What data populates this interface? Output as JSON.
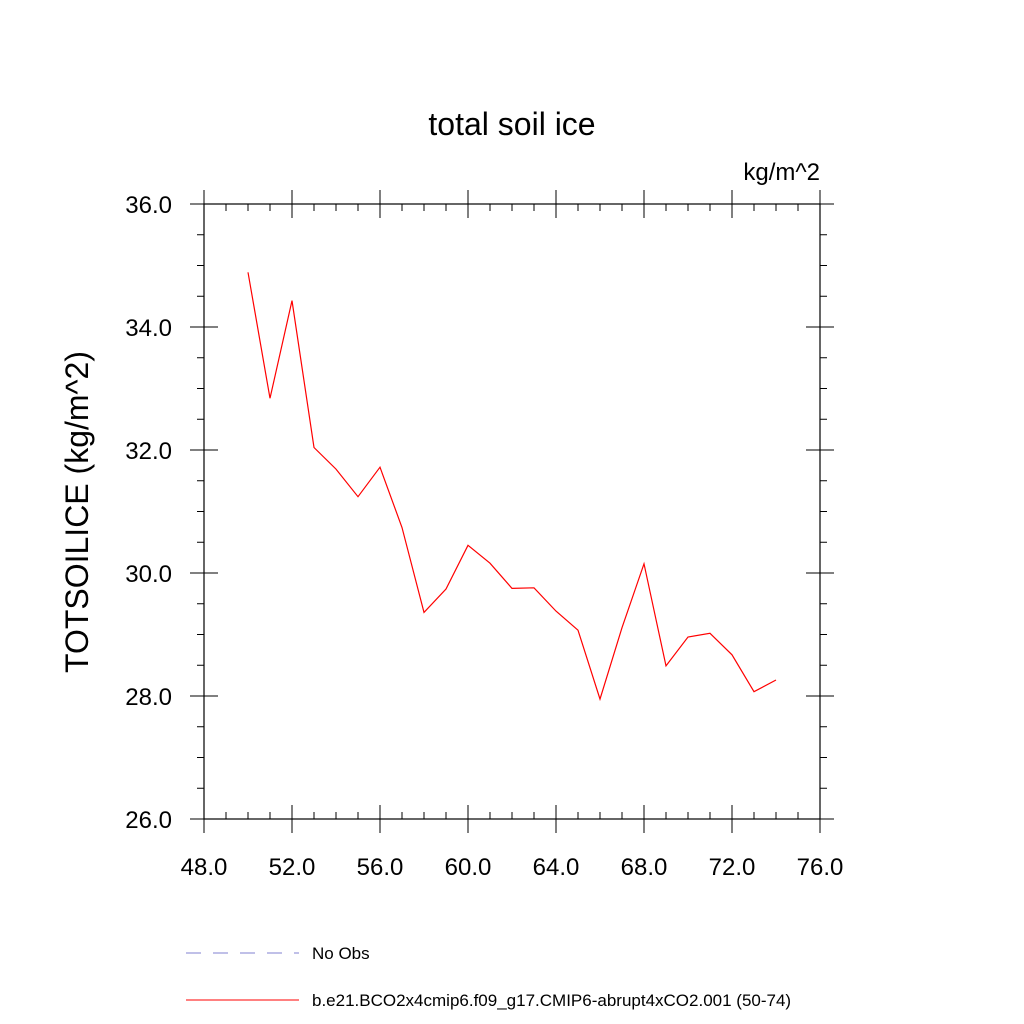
{
  "chart_data": {
    "type": "line",
    "title": "total soil ice",
    "units_label": "kg/m^2",
    "xlabel": "",
    "ylabel": "TOTSOILICE  (kg/m^2)",
    "xlim": [
      48,
      76
    ],
    "ylim": [
      26,
      36
    ],
    "x_ticks": [
      "48.0",
      "52.0",
      "56.0",
      "60.0",
      "64.0",
      "68.0",
      "72.0",
      "76.0"
    ],
    "y_ticks": [
      "26.0",
      "28.0",
      "30.0",
      "32.0",
      "34.0",
      "36.0"
    ],
    "grid": false,
    "legend_position": "bottom",
    "series": [
      {
        "name": "b.e21.BCO2x4cmip6.f09_g17.CMIP6-abrupt4xCO2.001 (50-74)",
        "color": "#ff0000",
        "style": "solid",
        "x": [
          50,
          51,
          52,
          53,
          54,
          55,
          56,
          57,
          58,
          59,
          60,
          61,
          62,
          63,
          64,
          65,
          66,
          67,
          68,
          69,
          70,
          71,
          72,
          73,
          74
        ],
        "y": [
          34.89,
          32.84,
          34.43,
          32.04,
          31.69,
          31.24,
          31.72,
          30.74,
          29.36,
          29.74,
          30.45,
          30.16,
          29.75,
          29.76,
          29.38,
          29.07,
          27.95,
          29.11,
          30.15,
          28.49,
          28.96,
          29.02,
          28.67,
          28.07,
          28.26
        ]
      }
    ],
    "legend": [
      {
        "label": "No Obs",
        "color": "#8080d0",
        "style": "dashed"
      },
      {
        "label": "b.e21.BCO2x4cmip6.f09_g17.CMIP6-abrupt4xCO2.001 (50-74)",
        "color": "#ff0000",
        "style": "solid"
      }
    ]
  }
}
